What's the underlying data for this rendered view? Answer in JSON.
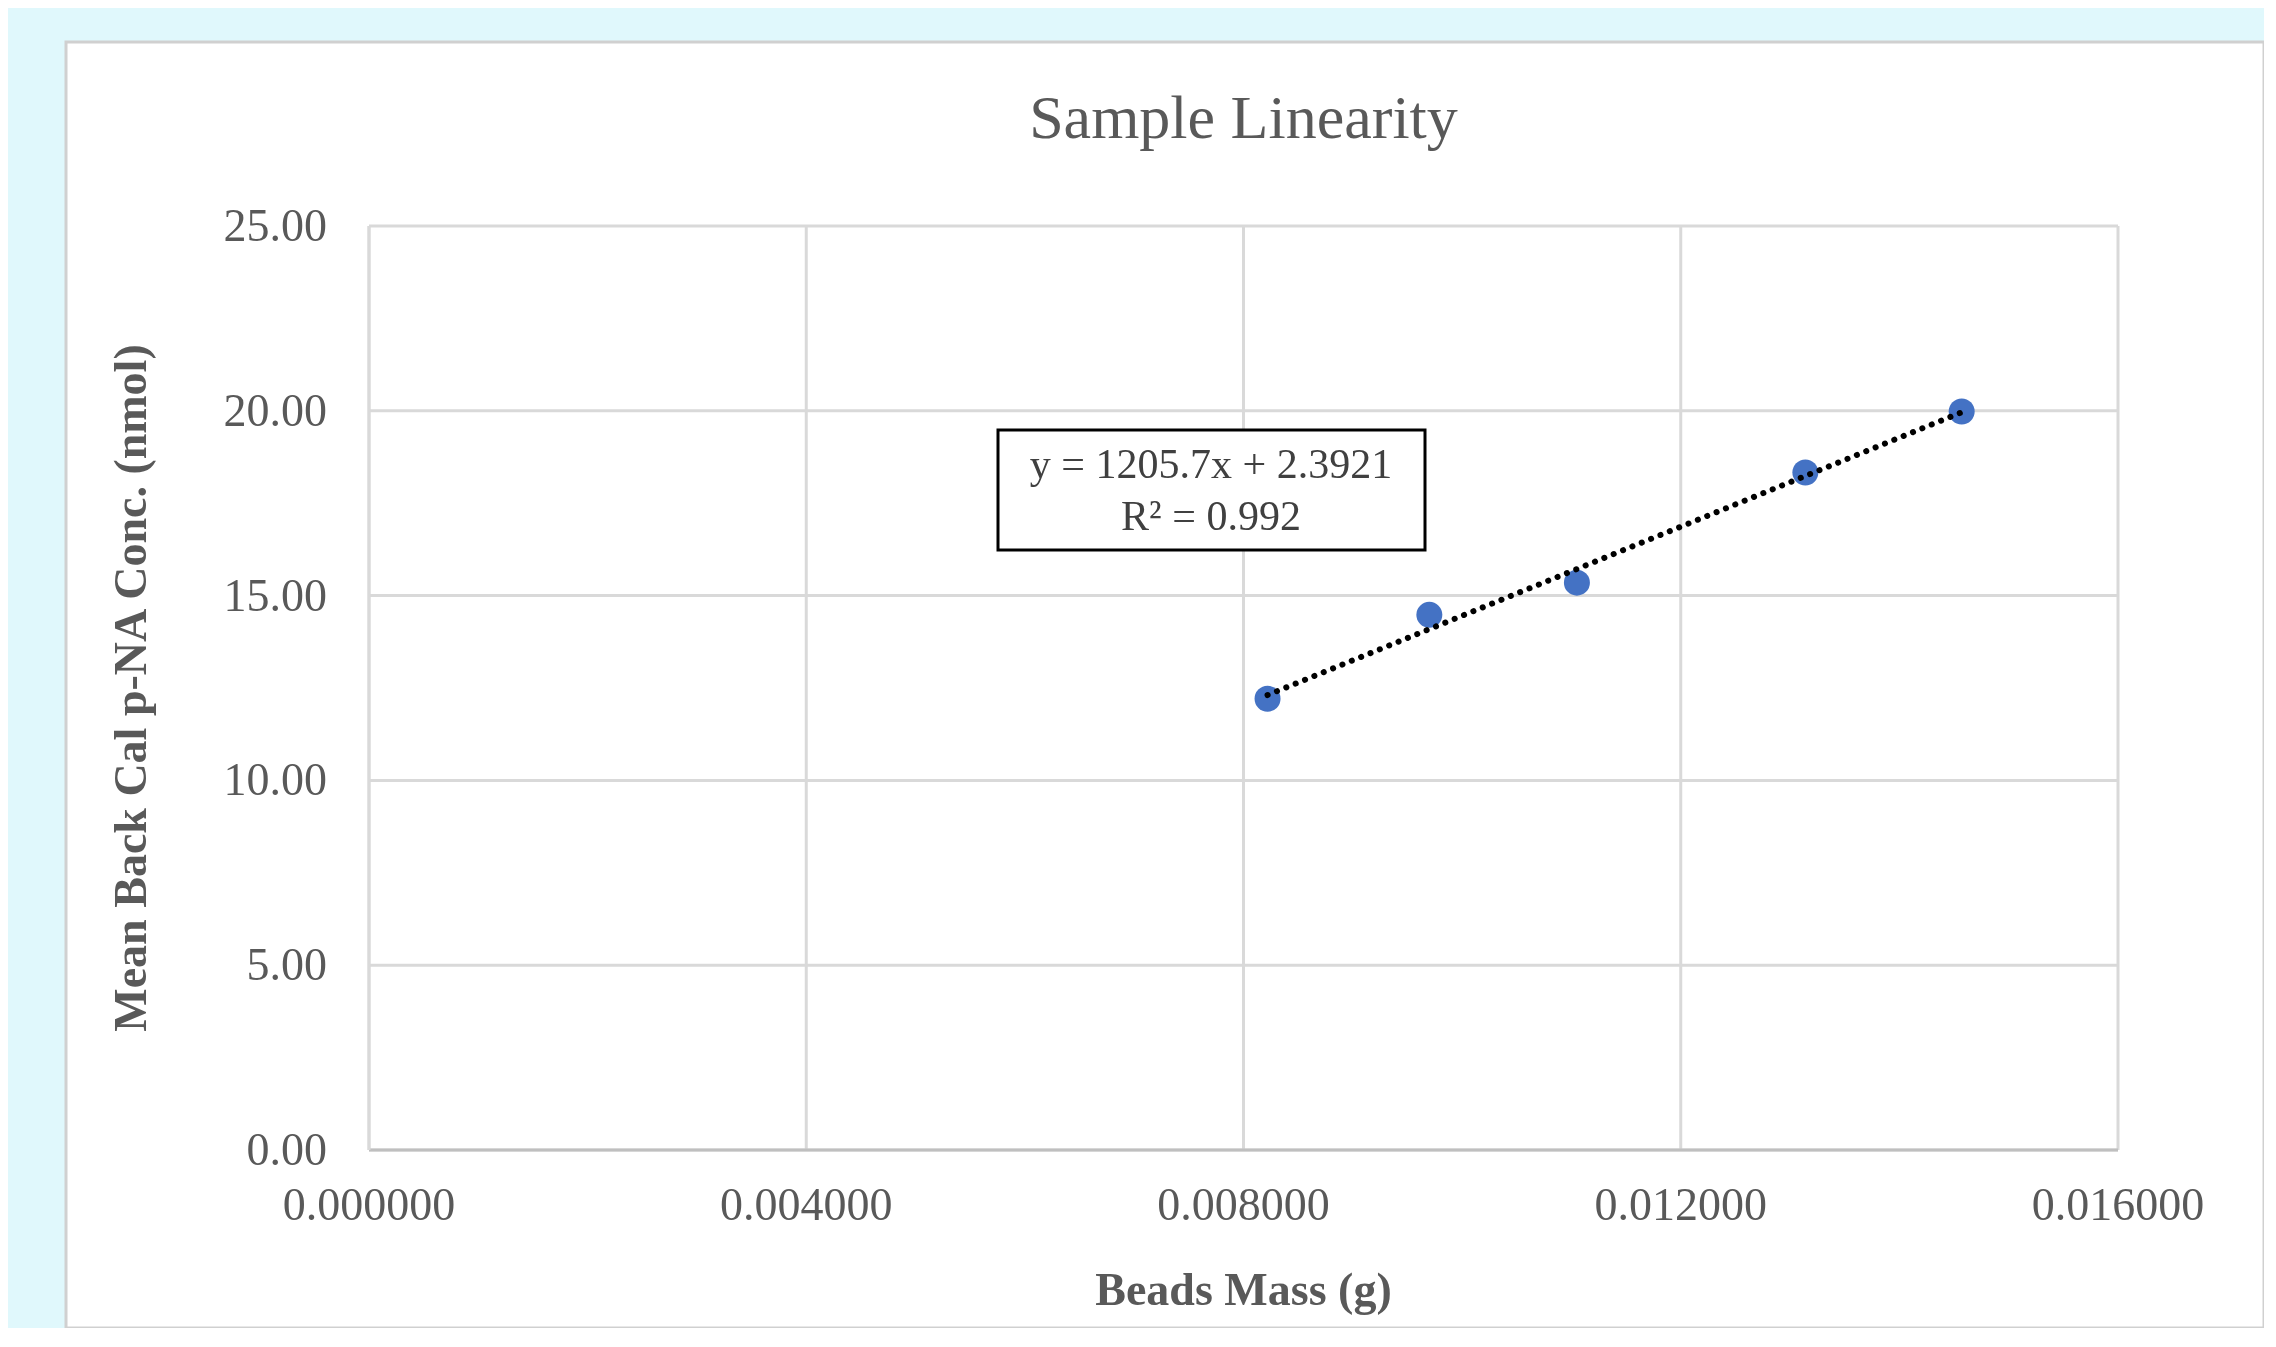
{
  "chart_data": {
    "type": "scatter",
    "title": "Sample Linearity",
    "xlabel": "Beads Mass (g)",
    "ylabel": "Mean Back Cal p-NA Conc. (nmol)",
    "series": [
      {
        "type": "scatter",
        "color": "#4472c4",
        "marker": "circle",
        "x": [
          0.00822,
          0.0097,
          0.01105,
          0.01314,
          0.01457
        ],
        "values": [
          12.21,
          14.48,
          15.35,
          18.33,
          19.98
        ]
      },
      {
        "type": "line",
        "color": "#000000",
        "line_style": "dotted",
        "marker": "none",
        "x": [
          0.00822,
          0.01457
        ],
        "values": [
          12.31,
          19.96
        ]
      }
    ],
    "xlim": [
      0,
      0.016
    ],
    "xticks": [
      {
        "value": 0,
        "label": "0.000000"
      },
      {
        "value": 0.004,
        "label": "0.004000"
      },
      {
        "value": 0.008,
        "label": "0.008000"
      },
      {
        "value": 0.012,
        "label": "0.012000"
      },
      {
        "value": 0.016,
        "label": "0.016000"
      }
    ],
    "ylim": [
      0,
      25
    ],
    "yticks": [
      {
        "value": 0,
        "label": "0.00"
      },
      {
        "value": 5,
        "label": "5.00"
      },
      {
        "value": 10,
        "label": "10.00"
      },
      {
        "value": 15,
        "label": "15.00"
      },
      {
        "value": 20,
        "label": "20.00"
      },
      {
        "value": 25,
        "label": "25.00"
      }
    ],
    "grid": true,
    "annotations": [
      "y = 1205.7x + 2.3921",
      "R² = 0.992"
    ]
  }
}
